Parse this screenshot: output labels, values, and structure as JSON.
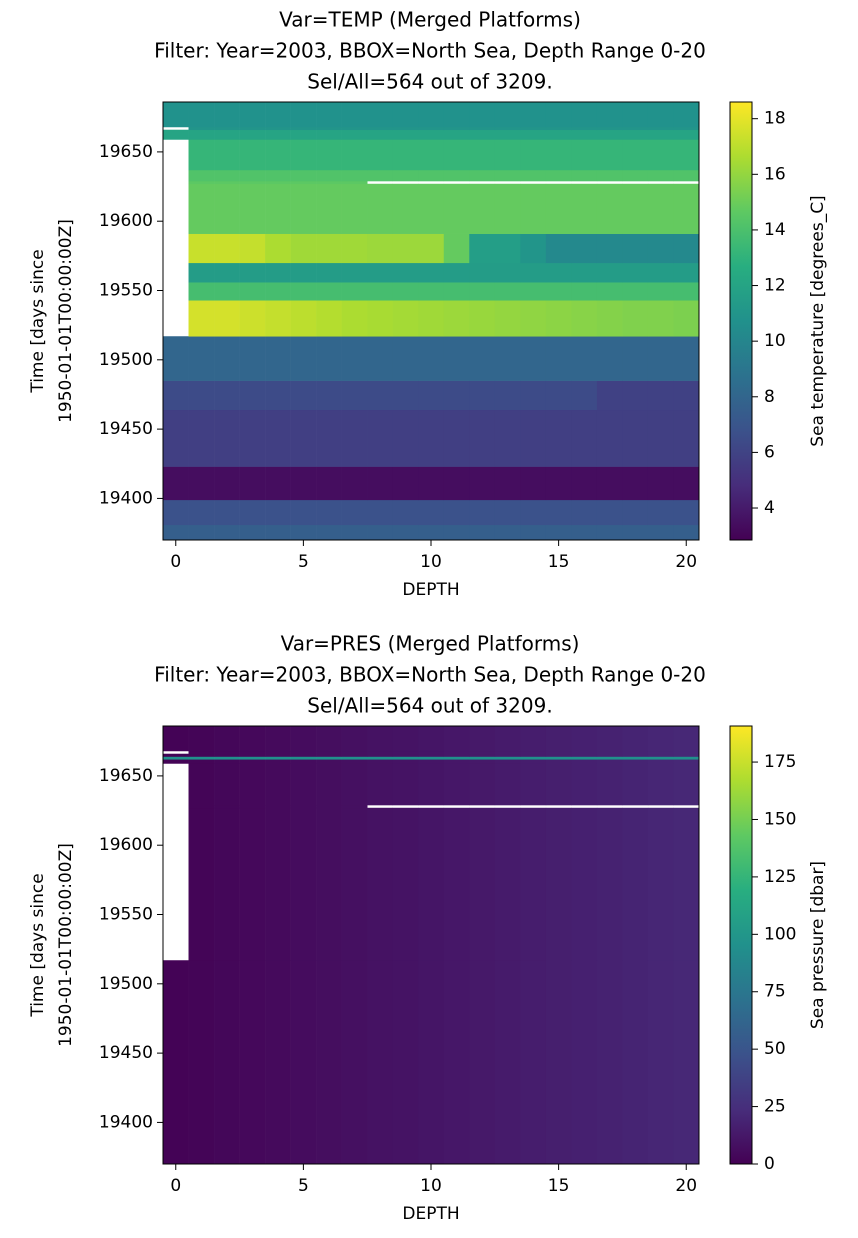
{
  "chart_data": [
    {
      "type": "heatmap",
      "title": [
        "Var=TEMP (Merged Platforms)",
        "Filter: Year=2003, BBOX=North Sea, Depth Range 0-20",
        "Sel/All=564 out of 3209."
      ],
      "x_label": "DEPTH",
      "y_label": [
        "Time [days since",
        "1950-01-01T00:00:00Z]"
      ],
      "colorbar_label": "Sea temperature [degrees_C]",
      "colormap": "viridis",
      "x": [
        0,
        1,
        2,
        3,
        4,
        5,
        6,
        7,
        8,
        9,
        10,
        11,
        12,
        13,
        14,
        15,
        16,
        17,
        18,
        19,
        20
      ],
      "y_edges": [
        19370,
        19381,
        19399,
        19423,
        19464,
        19485,
        19517,
        19543,
        19556,
        19570,
        19591,
        19627,
        19629,
        19637,
        19659,
        19666,
        19668,
        19686
      ],
      "values": [
        [
          7.6,
          7.6,
          7.6,
          7.6,
          7.6,
          7.6,
          7.6,
          7.6,
          7.6,
          7.6,
          7.6,
          7.6,
          7.6,
          7.6,
          7.6,
          7.6,
          7.6,
          7.6,
          7.6,
          7.6,
          7.6
        ],
        [
          6.8,
          6.8,
          6.8,
          6.8,
          6.8,
          6.8,
          6.8,
          6.8,
          6.8,
          6.8,
          6.8,
          6.8,
          6.8,
          6.8,
          6.8,
          6.8,
          6.8,
          6.8,
          6.8,
          6.8,
          6.8
        ],
        [
          3.4,
          3.4,
          3.4,
          3.4,
          3.4,
          3.4,
          3.4,
          3.4,
          3.4,
          3.4,
          3.4,
          3.4,
          3.4,
          3.4,
          3.4,
          3.4,
          3.4,
          3.4,
          3.4,
          3.4,
          3.4
        ],
        [
          5.8,
          5.8,
          5.8,
          5.8,
          5.8,
          5.8,
          5.8,
          5.8,
          5.8,
          5.8,
          5.8,
          5.8,
          5.8,
          5.8,
          5.8,
          5.8,
          5.8,
          5.8,
          5.8,
          5.8,
          5.8
        ],
        [
          6.4,
          6.4,
          6.4,
          6.4,
          6.4,
          6.4,
          6.4,
          6.4,
          6.4,
          6.4,
          6.4,
          6.4,
          6.4,
          6.4,
          6.4,
          6.4,
          6.4,
          5.9,
          5.9,
          5.9,
          5.9
        ],
        [
          8.0,
          8.0,
          8.0,
          8.0,
          8.0,
          8.0,
          8.0,
          8.0,
          8.0,
          8.0,
          8.0,
          8.0,
          8.0,
          8.0,
          8.0,
          8.0,
          8.0,
          8.0,
          8.0,
          8.0,
          8.0
        ],
        [
          null,
          17.6,
          17.6,
          17.4,
          17.2,
          17.0,
          16.8,
          16.6,
          16.5,
          16.4,
          16.3,
          16.2,
          16.1,
          16.0,
          15.9,
          15.8,
          15.7,
          15.6,
          15.5,
          15.5,
          15.4
        ],
        [
          null,
          13.8,
          13.8,
          13.8,
          13.8,
          13.8,
          13.8,
          13.8,
          13.8,
          13.8,
          13.8,
          13.8,
          13.8,
          13.8,
          13.8,
          13.8,
          13.8,
          13.8,
          13.8,
          13.8,
          13.8
        ],
        [
          null,
          11.5,
          11.5,
          11.5,
          11.5,
          11.5,
          11.5,
          11.5,
          11.5,
          11.5,
          11.5,
          11.5,
          11.5,
          11.5,
          11.5,
          11.5,
          11.5,
          11.5,
          11.5,
          11.5,
          11.5
        ],
        [
          null,
          17.3,
          17.3,
          17.2,
          16.6,
          16.3,
          16.3,
          16.3,
          16.2,
          16.2,
          16.2,
          14.8,
          11.6,
          11.6,
          11.0,
          10.2,
          10.2,
          10.2,
          10.2,
          10.2,
          10.2
        ],
        [
          null,
          14.8,
          14.8,
          14.8,
          14.8,
          14.8,
          14.8,
          14.8,
          14.8,
          14.8,
          14.8,
          14.8,
          14.8,
          14.8,
          14.8,
          14.8,
          14.8,
          14.8,
          14.8,
          14.8,
          14.8
        ],
        [
          null,
          14.6,
          14.6,
          14.6,
          14.6,
          14.6,
          14.6,
          14.6,
          null,
          null,
          null,
          null,
          null,
          null,
          null,
          null,
          null,
          null,
          null,
          null,
          null
        ],
        [
          null,
          14.2,
          14.2,
          14.2,
          14.2,
          14.2,
          14.2,
          14.2,
          14.2,
          14.2,
          14.2,
          14.2,
          14.2,
          14.2,
          14.2,
          14.2,
          14.2,
          14.2,
          14.2,
          14.2,
          14.2
        ],
        [
          null,
          13.2,
          13.2,
          13.2,
          13.2,
          13.2,
          13.2,
          13.2,
          13.2,
          13.2,
          13.2,
          13.2,
          13.2,
          13.2,
          13.2,
          13.2,
          13.2,
          13.2,
          13.2,
          13.2,
          13.2
        ],
        [
          12.0,
          12.0,
          12.0,
          12.0,
          12.0,
          12.0,
          12.0,
          12.0,
          12.0,
          12.0,
          12.0,
          12.0,
          12.0,
          12.0,
          12.0,
          12.0,
          12.0,
          12.0,
          12.0,
          12.0,
          12.0
        ],
        [
          null,
          11.0,
          11.0,
          11.0,
          11.0,
          11.0,
          11.0,
          11.0,
          11.0,
          11.0,
          11.0,
          11.0,
          11.0,
          11.0,
          11.0,
          11.0,
          11.0,
          11.0,
          11.0,
          11.0,
          11.0
        ],
        [
          10.8,
          10.8,
          10.8,
          10.8,
          10.8,
          10.8,
          10.8,
          10.8,
          10.8,
          10.8,
          10.8,
          10.8,
          10.8,
          10.8,
          10.8,
          10.8,
          10.8,
          10.8,
          10.8,
          10.8,
          10.8
        ]
      ],
      "xlim": [
        -0.5,
        20.5
      ],
      "xticks": [
        0,
        5,
        10,
        15,
        20
      ],
      "ylim": [
        19370,
        19686
      ],
      "yticks": [
        19400,
        19450,
        19500,
        19550,
        19600,
        19650
      ],
      "clim": [
        2.85,
        18.6
      ],
      "cticks": [
        4,
        6,
        8,
        10,
        12,
        14,
        16,
        18
      ]
    },
    {
      "type": "heatmap",
      "title": [
        "Var=PRES (Merged Platforms)",
        "Filter: Year=2003, BBOX=North Sea, Depth Range 0-20",
        "Sel/All=564 out of 3209."
      ],
      "x_label": "DEPTH",
      "y_label": [
        "Time [days since",
        "1950-01-01T00:00:00Z]"
      ],
      "colorbar_label": "Sea pressure [dbar]",
      "colormap": "viridis",
      "x": [
        0,
        1,
        2,
        3,
        4,
        5,
        6,
        7,
        8,
        9,
        10,
        11,
        12,
        13,
        14,
        15,
        16,
        17,
        18,
        19,
        20
      ],
      "y_edges": [
        19370,
        19517,
        19627,
        19629,
        19659,
        19662,
        19664,
        19666,
        19668,
        19686
      ],
      "values": [
        [
          1,
          2,
          3,
          4,
          5,
          6,
          7,
          8,
          9,
          10,
          11,
          12,
          13,
          14,
          15,
          16,
          17,
          18,
          19,
          20,
          21
        ],
        [
          null,
          2,
          3,
          4,
          5,
          6,
          7,
          8,
          9,
          10,
          11,
          12,
          13,
          14,
          15,
          16,
          17,
          18,
          19,
          20,
          21
        ],
        [
          null,
          2,
          3,
          4,
          5,
          6,
          7,
          8,
          null,
          null,
          null,
          null,
          null,
          null,
          null,
          null,
          null,
          null,
          null,
          null,
          null
        ],
        [
          null,
          2,
          3,
          4,
          5,
          6,
          7,
          8,
          9,
          10,
          11,
          12,
          13,
          14,
          15,
          16,
          17,
          18,
          19,
          20,
          21
        ],
        [
          1,
          2,
          3,
          4,
          5,
          6,
          7,
          8,
          9,
          10,
          11,
          12,
          13,
          14,
          15,
          16,
          17,
          18,
          19,
          20,
          21
        ],
        [
          95,
          95,
          95,
          95,
          95,
          95,
          95,
          95,
          95,
          95,
          95,
          95,
          95,
          95,
          95,
          95,
          95,
          95,
          95,
          95,
          95
        ],
        [
          1,
          2,
          3,
          4,
          5,
          6,
          7,
          8,
          9,
          10,
          11,
          12,
          13,
          14,
          15,
          16,
          17,
          18,
          19,
          20,
          21
        ],
        [
          null,
          2,
          3,
          4,
          5,
          6,
          7,
          8,
          9,
          10,
          11,
          12,
          13,
          14,
          15,
          16,
          17,
          18,
          19,
          20,
          21
        ],
        [
          1,
          2,
          3,
          4,
          5,
          6,
          7,
          8,
          9,
          10,
          11,
          12,
          13,
          14,
          15,
          16,
          17,
          18,
          19,
          20,
          21
        ]
      ],
      "xlim": [
        -0.5,
        20.5
      ],
      "xticks": [
        0,
        5,
        10,
        15,
        20
      ],
      "ylim": [
        19370,
        19686
      ],
      "yticks": [
        19400,
        19450,
        19500,
        19550,
        19600,
        19650
      ],
      "clim": [
        0,
        190.7
      ],
      "cticks": [
        0,
        25,
        50,
        75,
        100,
        125,
        150,
        175
      ]
    }
  ]
}
